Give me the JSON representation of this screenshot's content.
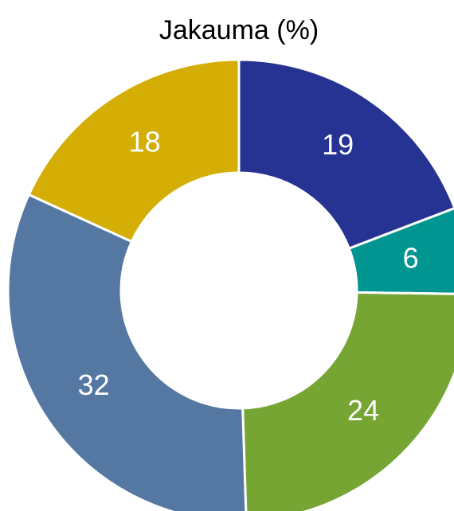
{
  "chart_data": {
    "type": "pie",
    "title": "Jakauma (%)",
    "values": [
      19,
      6,
      24,
      32,
      18
    ],
    "colors": [
      "#263392",
      "#009590",
      "#76a534",
      "#5578a3",
      "#d4ae05"
    ]
  }
}
